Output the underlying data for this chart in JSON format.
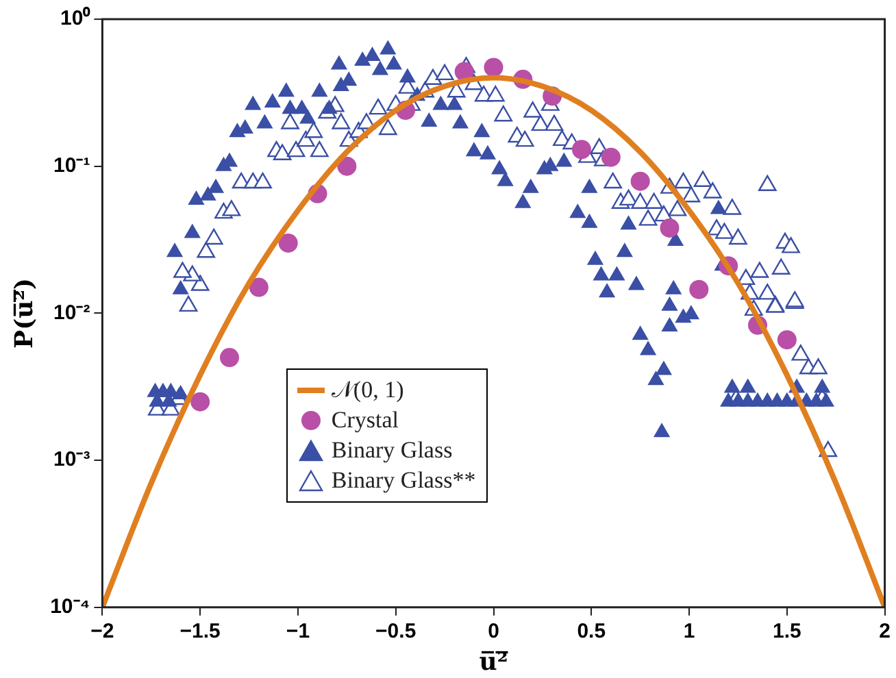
{
  "chart_data": {
    "type": "scatter",
    "xlabel": "u̅²̅",
    "ylabel": "P(u̅²̅)",
    "log": "y",
    "legend": "bottom",
    "grid": false,
    "xlim": [
      -2,
      2
    ],
    "xticks": [
      -2,
      -1.5,
      -1,
      -0.5,
      0,
      0.5,
      1,
      1.5,
      2
    ],
    "ylim": [
      0.0001,
      1
    ],
    "yticks": [
      {
        "value": 0.0001,
        "label": "10⁻⁴"
      },
      {
        "value": 0.001,
        "label": "10⁻³"
      },
      {
        "value": 0.01,
        "label": "10⁻²"
      },
      {
        "value": 0.1,
        "label": "10⁻¹"
      },
      {
        "value": 1,
        "label": "10⁰"
      }
    ],
    "series": [
      {
        "name": "𝒩(0, 1)",
        "type": "line",
        "marker": "none",
        "line_style": "solid",
        "color": "#e07f20",
        "x": [
          -2,
          -1.75,
          -1.5,
          -1.25,
          -1,
          -0.75,
          -0.5,
          -0.25,
          0,
          0.25,
          0.5,
          0.75,
          1,
          1.25,
          1.5,
          1.75,
          2
        ],
        "values": [
          0.0001,
          0.0007,
          0.0038,
          0.016,
          0.05,
          0.125,
          0.24,
          0.35,
          0.4,
          0.35,
          0.24,
          0.125,
          0.05,
          0.016,
          0.0038,
          0.0007,
          0.0001
        ]
      },
      {
        "name": "Crystal",
        "marker": "circle",
        "color": "#b94fa6",
        "x": [
          -1.5,
          -1.35,
          -1.2,
          -1.05,
          -0.9,
          -0.75,
          -0.45,
          -0.15,
          0,
          0.15,
          0.3,
          0.45,
          0.6,
          0.75,
          0.9,
          1.05,
          1.2,
          1.35,
          1.5
        ],
        "values": [
          0.0025,
          0.005,
          0.015,
          0.03,
          0.065,
          0.1,
          0.24,
          0.44,
          0.47,
          0.39,
          0.3,
          0.13,
          0.115,
          0.079,
          0.038,
          0.0145,
          0.021,
          0.0083,
          0.0066
        ]
      },
      {
        "name": "Binary Glass",
        "marker": "triangle",
        "color": "#3a4fa5",
        "x": [
          -1.73,
          -1.69,
          -1.65,
          -1.6,
          -1.72,
          -1.66,
          -1.63,
          -1.6,
          -1.54,
          -1.52,
          -1.46,
          -1.42,
          -1.38,
          -1.35,
          -1.31,
          -1.27,
          -1.23,
          -1.17,
          -1.13,
          -1.06,
          -1.04,
          -0.98,
          -0.95,
          -0.89,
          -0.84,
          -0.79,
          -0.78,
          -0.74,
          -0.67,
          -0.62,
          -0.58,
          -0.54,
          -0.51,
          -0.44,
          -0.39,
          -0.33,
          -0.27,
          -0.2,
          -0.17,
          -0.1,
          -0.06,
          -0.03,
          0.03,
          0.06,
          0.15,
          0.19,
          0.26,
          0.29,
          0.36,
          0.43,
          0.49,
          0.49,
          0.52,
          0.55,
          0.63,
          0.67,
          0.58,
          0.73,
          0.69,
          0.92,
          0.93,
          1.15,
          1.17,
          0.9,
          0.97,
          1.01,
          0.75,
          0.79,
          0.87,
          0.83,
          0.9,
          0.86,
          1.2,
          1.25,
          1.3,
          1.35,
          1.4,
          1.45,
          1.5,
          1.55,
          1.6,
          1.65,
          1.7,
          1.22,
          1.3,
          1.55,
          1.68
        ],
        "values": [
          0.0029,
          0.0029,
          0.0029,
          0.0028,
          0.0025,
          0.0025,
          0.026,
          0.0145,
          0.035,
          0.059,
          0.063,
          0.071,
          0.1,
          0.107,
          0.17,
          0.18,
          0.26,
          0.195,
          0.27,
          0.32,
          0.245,
          0.245,
          0.21,
          0.32,
          0.245,
          0.49,
          0.35,
          0.38,
          0.52,
          0.56,
          0.45,
          0.62,
          0.49,
          0.4,
          0.3,
          0.2,
          0.26,
          0.26,
          0.195,
          0.126,
          0.17,
          0.12,
          0.095,
          0.079,
          0.056,
          0.071,
          0.095,
          0.1,
          0.107,
          0.048,
          0.041,
          0.071,
          0.023,
          0.018,
          0.018,
          0.026,
          0.0138,
          0.0155,
          0.04,
          0.0145,
          0.031,
          0.051,
          0.021,
          0.0112,
          0.0093,
          0.0098,
          0.0071,
          0.0056,
          0.0041,
          0.0035,
          0.0081,
          0.00155,
          0.0025,
          0.0025,
          0.0025,
          0.0025,
          0.0025,
          0.0025,
          0.0025,
          0.0025,
          0.0025,
          0.0025,
          0.0025,
          0.0031,
          0.0031,
          0.0031,
          0.0031
        ]
      },
      {
        "name": "Binary Glass**",
        "marker": "triangle-open",
        "color": "#3a4fa5",
        "x": [
          -1.72,
          -1.65,
          -1.61,
          -1.56,
          -1.5,
          -1.54,
          -1.59,
          -1.47,
          -1.43,
          -1.38,
          -1.34,
          -1.29,
          -1.23,
          -1.18,
          -1.11,
          -1.08,
          -1.04,
          -1.01,
          -0.96,
          -0.92,
          -0.89,
          -0.85,
          -0.81,
          -0.78,
          -0.74,
          -0.69,
          -0.65,
          -0.59,
          -0.54,
          -0.5,
          -0.44,
          -0.42,
          -0.35,
          -0.31,
          -0.25,
          -0.19,
          -0.14,
          -0.1,
          -0.05,
          0.01,
          0.05,
          0.12,
          0.16,
          0.2,
          0.24,
          0.29,
          0.31,
          0.35,
          0.4,
          0.48,
          0.54,
          0.56,
          0.61,
          0.65,
          0.69,
          0.75,
          0.79,
          0.82,
          0.87,
          0.9,
          0.94,
          0.97,
          1.01,
          1.07,
          1.12,
          1.14,
          1.18,
          1.22,
          1.25,
          1.4,
          1.49,
          1.52,
          1.29,
          1.36,
          1.47,
          1.31,
          1.4,
          1.54,
          1.44,
          1.33,
          1.44,
          1.54,
          1.57,
          1.61,
          1.66,
          1.68,
          1.71,
          1.24
        ],
        "values": [
          0.0022,
          0.0022,
          0.0026,
          0.0112,
          0.0155,
          0.018,
          0.019,
          0.026,
          0.032,
          0.048,
          0.05,
          0.077,
          0.077,
          0.077,
          0.126,
          0.12,
          0.195,
          0.126,
          0.148,
          0.17,
          0.126,
          0.23,
          0.255,
          0.195,
          0.148,
          0.17,
          0.195,
          0.245,
          0.178,
          0.26,
          0.34,
          0.26,
          0.32,
          0.39,
          0.42,
          0.32,
          0.47,
          0.36,
          0.3,
          0.3,
          0.22,
          0.158,
          0.148,
          0.234,
          0.19,
          0.26,
          0.19,
          0.15,
          0.142,
          0.115,
          0.132,
          0.109,
          0.077,
          0.056,
          0.059,
          0.056,
          0.043,
          0.056,
          0.046,
          0.071,
          0.05,
          0.077,
          0.062,
          0.079,
          0.066,
          0.037,
          0.035,
          0.051,
          0.032,
          0.074,
          0.03,
          0.028,
          0.017,
          0.019,
          0.02,
          0.0135,
          0.0135,
          0.0117,
          0.0112,
          0.0105,
          0.011,
          0.012,
          0.0052,
          0.0042,
          0.0042,
          0.0026,
          0.00115,
          0.0026
        ]
      }
    ]
  }
}
